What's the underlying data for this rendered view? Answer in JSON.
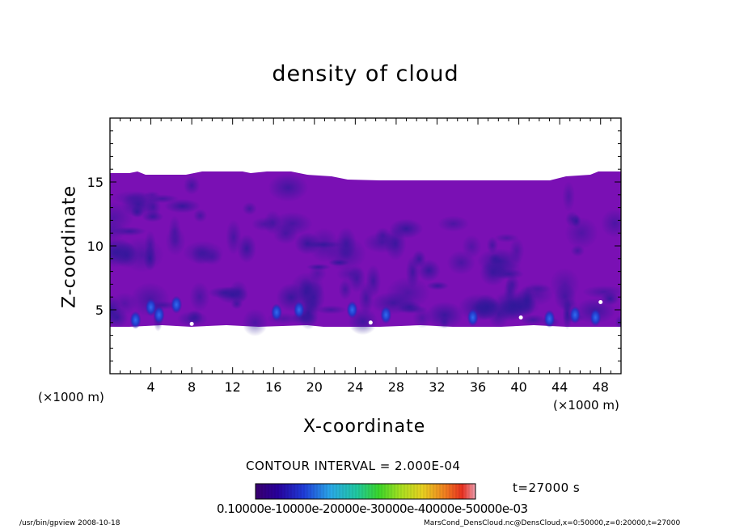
{
  "chart_data": {
    "type": "heatmap",
    "title": "density of cloud",
    "xlabel": "X-coordinate",
    "ylabel": "Z-coordinate",
    "x_unit": "(×1000 m)",
    "xlim": [
      0,
      50
    ],
    "ylim": [
      0,
      20
    ],
    "x_ticks": [
      4,
      8,
      12,
      16,
      20,
      24,
      28,
      32,
      36,
      40,
      44,
      48
    ],
    "y_ticks": [
      5,
      10,
      15
    ],
    "field": {
      "cloud_bottom_z": 3.7,
      "cloud_top_z": 15.3,
      "dominant_value": 0.0001,
      "description_levels": [
        0.0001,
        0.0002,
        0.0003,
        0.0004,
        0.0005
      ]
    },
    "colorbar": {
      "min": 0.0001,
      "max": 0.0006,
      "labels_text": "0.10000e-10000e-20000e-30000e-40000e-50000e-03"
    },
    "contour_interval_text": "CONTOUR INTERVAL = 2.000E-04",
    "time_text": "t=27000 s"
  },
  "footer": {
    "left": "/usr/bin/gpview   2008-10-18",
    "right": "MarsCond_DensCloud.nc@DensCloud,x=0:50000,z=0:20000,t=27000"
  },
  "colors": {
    "background": "#7a10b4",
    "low": "#3c10a0",
    "mid": "#5a14b0",
    "blue_spot": "#2036c8",
    "white_spot": "#ffffff"
  }
}
